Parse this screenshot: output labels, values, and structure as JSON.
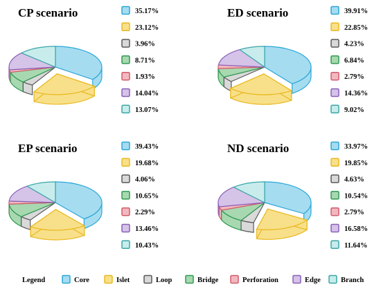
{
  "palette": {
    "Core": {
      "fill": "#a6dcf0",
      "stroke": "#2aa7d8"
    },
    "Islet": {
      "fill": "#f8e08a",
      "stroke": "#e9b81f"
    },
    "Loop": {
      "fill": "#d9d9d9",
      "stroke": "#595959"
    },
    "Bridge": {
      "fill": "#a8d8b0",
      "stroke": "#2e9a52"
    },
    "Perforation": {
      "fill": "#f2b8c0",
      "stroke": "#d35a6a"
    },
    "Edge": {
      "fill": "#d5c3e8",
      "stroke": "#8a5fb8"
    },
    "Branch": {
      "fill": "#c8ecec",
      "stroke": "#3aa6a6"
    }
  },
  "legend": {
    "label": "Legend",
    "items": [
      "Core",
      "Islet",
      "Loop",
      "Bridge",
      "Perforation",
      "Edge",
      "Branch"
    ]
  },
  "chart_data": [
    {
      "type": "pie",
      "title": "CP scenario",
      "categories": [
        "Core",
        "Islet",
        "Loop",
        "Bridge",
        "Perforation",
        "Edge",
        "Branch"
      ],
      "values": [
        35.17,
        23.12,
        3.96,
        8.71,
        1.93,
        14.04,
        13.07
      ],
      "labels": [
        "35.17%",
        "23.12%",
        "3.96%",
        "8.71%",
        "1.93%",
        "14.04%",
        "13.07%"
      ],
      "exploded": "Islet",
      "style": "3d"
    },
    {
      "type": "pie",
      "title": "ED scenario",
      "categories": [
        "Core",
        "Islet",
        "Loop",
        "Bridge",
        "Perforation",
        "Edge",
        "Branch"
      ],
      "values": [
        39.91,
        22.85,
        4.23,
        6.84,
        2.79,
        14.36,
        9.02
      ],
      "labels": [
        "39.91%",
        "22.85%",
        "4.23%",
        "6.84%",
        "2.79%",
        "14.36%",
        "9.02%"
      ],
      "exploded": "Islet",
      "style": "3d"
    },
    {
      "type": "pie",
      "title": "EP scenario",
      "categories": [
        "Core",
        "Islet",
        "Loop",
        "Bridge",
        "Perforation",
        "Edge",
        "Branch"
      ],
      "values": [
        39.43,
        19.68,
        4.06,
        10.65,
        2.29,
        13.46,
        10.43
      ],
      "labels": [
        "39.43%",
        "19.68%",
        "4.06%",
        "10.65%",
        "2.29%",
        "13.46%",
        "10.43%"
      ],
      "exploded": "Islet",
      "style": "3d"
    },
    {
      "type": "pie",
      "title": "ND scenario",
      "categories": [
        "Core",
        "Islet",
        "Loop",
        "Bridge",
        "Perforation",
        "Edge",
        "Branch"
      ],
      "values": [
        33.97,
        19.85,
        4.63,
        10.54,
        2.79,
        16.58,
        11.64
      ],
      "labels": [
        "33.97%",
        "19.85%",
        "4.63%",
        "10.54%",
        "2.79%",
        "16.58%",
        "11.64%"
      ],
      "exploded": "Islet",
      "style": "3d"
    }
  ]
}
